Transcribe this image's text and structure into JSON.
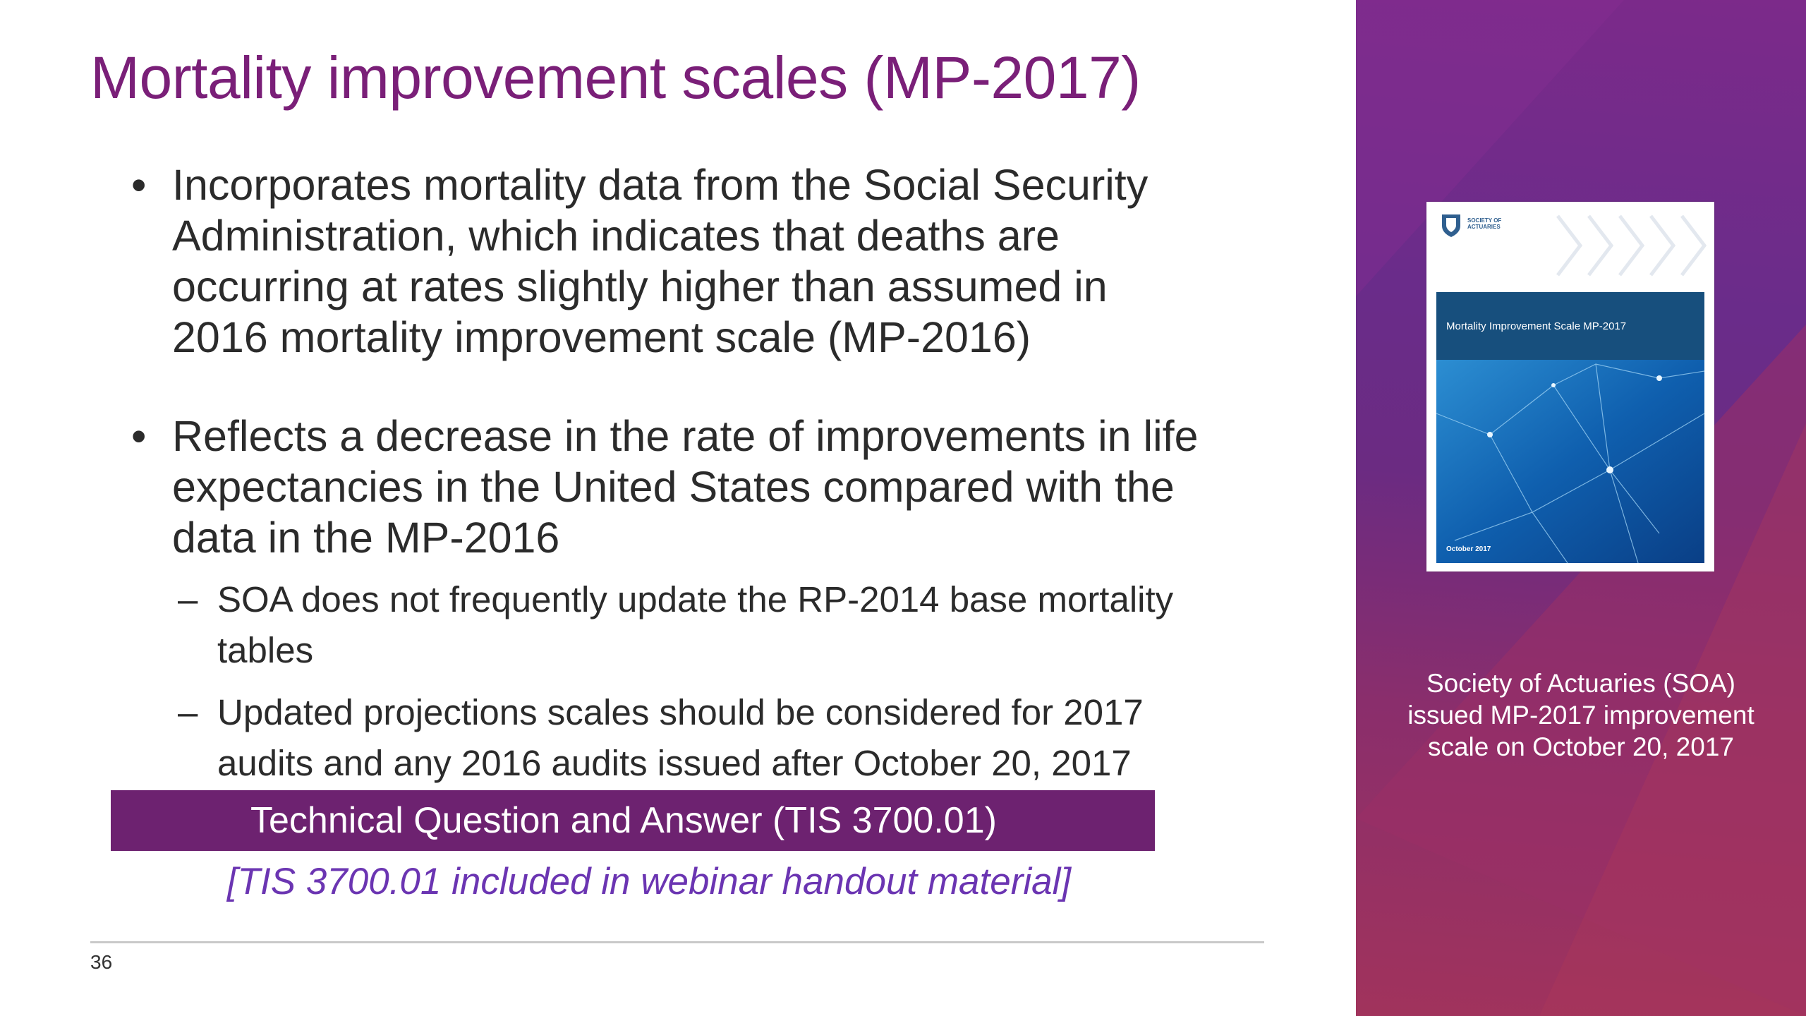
{
  "slide": {
    "title": "Mortality improvement scales (MP-2017)",
    "bullets": [
      {
        "symbol": "•",
        "lines": [
          "Incorporates mortality data from the Social Security",
          "Administration, which indicates that deaths are",
          "occurring at rates slightly higher than assumed in",
          "2016 mortality improvement scale (MP-2016)"
        ]
      },
      {
        "symbol": "•",
        "lines": [
          "Reflects a decrease in the rate of improvements in life",
          "expectancies in the United States compared with the",
          "data in the MP-2016"
        ]
      }
    ],
    "subbullets": [
      {
        "symbol": "–",
        "lines": [
          "SOA does not frequently update the RP-2014 base mortality",
          "tables"
        ]
      },
      {
        "symbol": "–",
        "lines": [
          "Updated projections scales should be considered for 2017",
          "audits and any 2016 audits issued after October 20, 2017"
        ]
      }
    ],
    "banner": "Technical Question and Answer (TIS 3700.01)",
    "handout_note": "[TIS 3700.01 included in webinar handout material]",
    "page_number": "36"
  },
  "side_panel": {
    "cover": {
      "logo_text": "SOCIETY OF\nACTUARIES",
      "title": "Mortality Improvement Scale MP-2017",
      "date": "October 2017"
    },
    "caption_lines": [
      "Society of Actuaries (SOA)",
      "issued MP-2017 improvement",
      "scale on October 20, 2017"
    ]
  },
  "colors": {
    "title": "#7a1f78",
    "banner": "#6d2270",
    "note": "#6b35b2",
    "panel_top": "#7c2a8a",
    "panel_bottom": "#a1335c"
  }
}
